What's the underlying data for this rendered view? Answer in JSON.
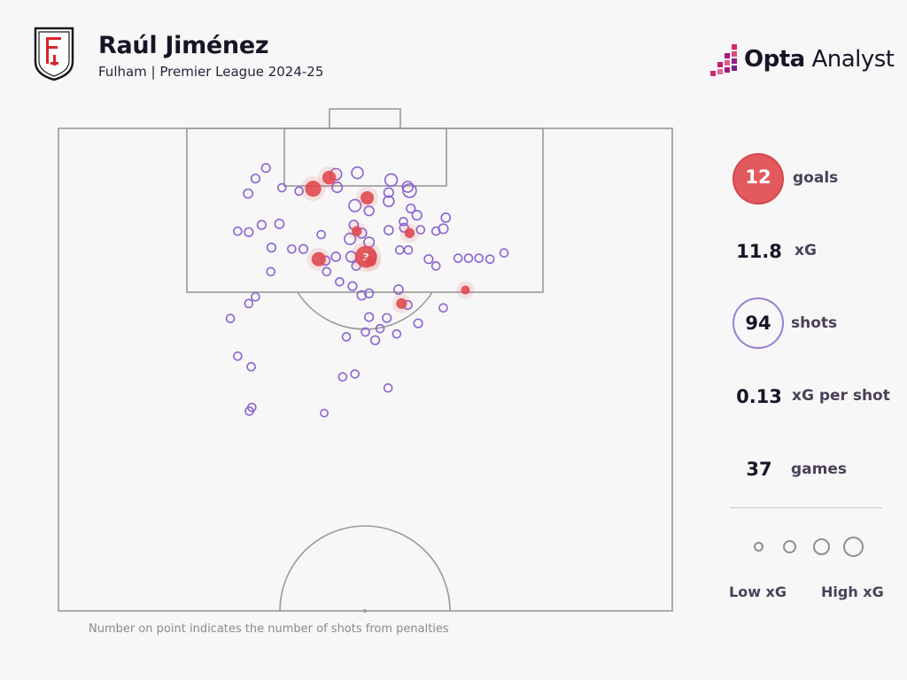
{
  "header": {
    "player_name": "Raúl Jiménez",
    "subtitle": "Fulham | Premier League 2024-25",
    "brand_bold": "Opta",
    "brand_light": " Analyst"
  },
  "stats": {
    "goals_value": "12",
    "goals_label": "goals",
    "xg_value": "11.8",
    "xg_label": "xG",
    "shots_value": "94",
    "shots_label": "shots",
    "xg_per_shot_value": "0.13",
    "xg_per_shot_label": "xG per shot",
    "games_value": "37",
    "games_label": "games"
  },
  "legend": {
    "low_label": "Low xG",
    "high_label": "High xG"
  },
  "footnote": "Number on point indicates the number of shots from penalties",
  "colors": {
    "goal": "#e04a4f",
    "shot": "#8a63d2",
    "pitch_line": "#9a9a9a",
    "background": "#f7f7f7"
  },
  "chart_data": {
    "type": "scatter",
    "description_units": "pitch coordinates: x = width across pitch (0-100), y = distance from goal line (0-100, 100 = halfway line)",
    "goals": [
      {
        "x": 41.5,
        "y": 12.5,
        "xg": 0.35,
        "label": ""
      },
      {
        "x": 44.1,
        "y": 10.2,
        "xg": 0.22,
        "label": ""
      },
      {
        "x": 50.3,
        "y": 14.4,
        "xg": 0.2,
        "label": ""
      },
      {
        "x": 50.1,
        "y": 26.6,
        "xg": 0.79,
        "label": "3"
      },
      {
        "x": 42.4,
        "y": 27.1,
        "xg": 0.25,
        "label": ""
      },
      {
        "x": 48.6,
        "y": 21.3,
        "xg": 0.08,
        "label": ""
      },
      {
        "x": 57.2,
        "y": 21.7,
        "xg": 0.08,
        "label": ""
      },
      {
        "x": 55.9,
        "y": 36.3,
        "xg": 0.1,
        "label": ""
      },
      {
        "x": 66.3,
        "y": 33.5,
        "xg": 0.05,
        "label": ""
      },
      {
        "x": 50.9,
        "y": 27.5,
        "xg": 0.1,
        "label": ""
      }
    ],
    "shots": [
      {
        "x": 33.8,
        "y": 8.2,
        "xg": 0.04
      },
      {
        "x": 32.1,
        "y": 10.4,
        "xg": 0.04
      },
      {
        "x": 30.9,
        "y": 13.5,
        "xg": 0.05
      },
      {
        "x": 45.2,
        "y": 9.5,
        "xg": 0.12
      },
      {
        "x": 45.4,
        "y": 12.2,
        "xg": 0.08
      },
      {
        "x": 48.7,
        "y": 9.2,
        "xg": 0.12
      },
      {
        "x": 54.2,
        "y": 10.7,
        "xg": 0.15
      },
      {
        "x": 56.9,
        "y": 12.1,
        "xg": 0.1
      },
      {
        "x": 57.2,
        "y": 12.9,
        "xg": 0.2
      },
      {
        "x": 53.8,
        "y": 13.3,
        "xg": 0.06
      },
      {
        "x": 53.8,
        "y": 15.1,
        "xg": 0.09
      },
      {
        "x": 48.3,
        "y": 16.0,
        "xg": 0.14
      },
      {
        "x": 50.6,
        "y": 17.1,
        "xg": 0.06
      },
      {
        "x": 57.4,
        "y": 16.6,
        "xg": 0.04
      },
      {
        "x": 58.4,
        "y": 18.0,
        "xg": 0.06
      },
      {
        "x": 33.1,
        "y": 20.0,
        "xg": 0.04
      },
      {
        "x": 36.0,
        "y": 19.8,
        "xg": 0.05
      },
      {
        "x": 31.0,
        "y": 21.5,
        "xg": 0.04
      },
      {
        "x": 29.2,
        "y": 21.3,
        "xg": 0.03
      },
      {
        "x": 48.1,
        "y": 20.0,
        "xg": 0.05
      },
      {
        "x": 49.4,
        "y": 21.7,
        "xg": 0.07
      },
      {
        "x": 47.5,
        "y": 22.9,
        "xg": 0.11
      },
      {
        "x": 50.6,
        "y": 23.6,
        "xg": 0.08
      },
      {
        "x": 51.0,
        "y": 26.5,
        "xg": 0.06
      },
      {
        "x": 53.8,
        "y": 21.1,
        "xg": 0.05
      },
      {
        "x": 56.3,
        "y": 20.6,
        "xg": 0.04
      },
      {
        "x": 59.0,
        "y": 21.0,
        "xg": 0.03
      },
      {
        "x": 61.5,
        "y": 21.3,
        "xg": 0.03
      },
      {
        "x": 62.7,
        "y": 20.8,
        "xg": 0.06
      },
      {
        "x": 63.1,
        "y": 18.5,
        "xg": 0.05
      },
      {
        "x": 34.7,
        "y": 24.7,
        "xg": 0.04
      },
      {
        "x": 38.0,
        "y": 25.0,
        "xg": 0.03
      },
      {
        "x": 39.9,
        "y": 25.0,
        "xg": 0.04
      },
      {
        "x": 43.5,
        "y": 27.4,
        "xg": 0.05
      },
      {
        "x": 45.2,
        "y": 26.6,
        "xg": 0.05
      },
      {
        "x": 47.7,
        "y": 26.6,
        "xg": 0.09
      },
      {
        "x": 48.5,
        "y": 28.5,
        "xg": 0.04
      },
      {
        "x": 57.0,
        "y": 25.2,
        "xg": 0.03
      },
      {
        "x": 60.3,
        "y": 27.1,
        "xg": 0.04
      },
      {
        "x": 61.5,
        "y": 28.5,
        "xg": 0.03
      },
      {
        "x": 65.1,
        "y": 26.9,
        "xg": 0.03
      },
      {
        "x": 66.8,
        "y": 26.9,
        "xg": 0.03
      },
      {
        "x": 68.5,
        "y": 26.9,
        "xg": 0.03
      },
      {
        "x": 70.3,
        "y": 27.1,
        "xg": 0.03
      },
      {
        "x": 72.6,
        "y": 25.8,
        "xg": 0.03
      },
      {
        "x": 34.6,
        "y": 29.7,
        "xg": 0.03
      },
      {
        "x": 43.7,
        "y": 29.7,
        "xg": 0.03
      },
      {
        "x": 45.8,
        "y": 31.8,
        "xg": 0.03
      },
      {
        "x": 47.9,
        "y": 32.7,
        "xg": 0.04
      },
      {
        "x": 49.4,
        "y": 34.6,
        "xg": 0.05
      },
      {
        "x": 50.6,
        "y": 34.2,
        "xg": 0.04
      },
      {
        "x": 55.4,
        "y": 33.4,
        "xg": 0.05
      },
      {
        "x": 56.9,
        "y": 36.6,
        "xg": 0.04
      },
      {
        "x": 50.6,
        "y": 39.1,
        "xg": 0.04
      },
      {
        "x": 53.5,
        "y": 39.3,
        "xg": 0.04
      },
      {
        "x": 58.6,
        "y": 40.4,
        "xg": 0.04
      },
      {
        "x": 62.7,
        "y": 37.2,
        "xg": 0.03
      },
      {
        "x": 46.9,
        "y": 43.2,
        "xg": 0.03
      },
      {
        "x": 50.0,
        "y": 42.2,
        "xg": 0.03
      },
      {
        "x": 51.6,
        "y": 43.9,
        "xg": 0.04
      },
      {
        "x": 52.4,
        "y": 41.5,
        "xg": 0.03
      },
      {
        "x": 55.1,
        "y": 42.6,
        "xg": 0.03
      },
      {
        "x": 31.0,
        "y": 36.3,
        "xg": 0.03
      },
      {
        "x": 32.1,
        "y": 34.9,
        "xg": 0.03
      },
      {
        "x": 28.0,
        "y": 39.4,
        "xg": 0.03
      },
      {
        "x": 29.2,
        "y": 47.2,
        "xg": 0.03
      },
      {
        "x": 31.4,
        "y": 49.4,
        "xg": 0.03
      },
      {
        "x": 48.3,
        "y": 50.9,
        "xg": 0.03
      },
      {
        "x": 46.3,
        "y": 51.5,
        "xg": 0.03
      },
      {
        "x": 53.7,
        "y": 53.8,
        "xg": 0.03
      },
      {
        "x": 31.1,
        "y": 58.6,
        "xg": 0.03
      },
      {
        "x": 31.5,
        "y": 57.8,
        "xg": 0.03
      },
      {
        "x": 43.3,
        "y": 59.0,
        "xg": 0.02
      },
      {
        "x": 36.4,
        "y": 12.3,
        "xg": 0.03
      },
      {
        "x": 39.2,
        "y": 13.0,
        "xg": 0.03
      },
      {
        "x": 56.2,
        "y": 19.3,
        "xg": 0.03
      },
      {
        "x": 55.6,
        "y": 25.2,
        "xg": 0.03
      },
      {
        "x": 42.8,
        "y": 22.0,
        "xg": 0.03
      }
    ],
    "penalty_note": "Number on point indicates the number of shots from penalties"
  }
}
